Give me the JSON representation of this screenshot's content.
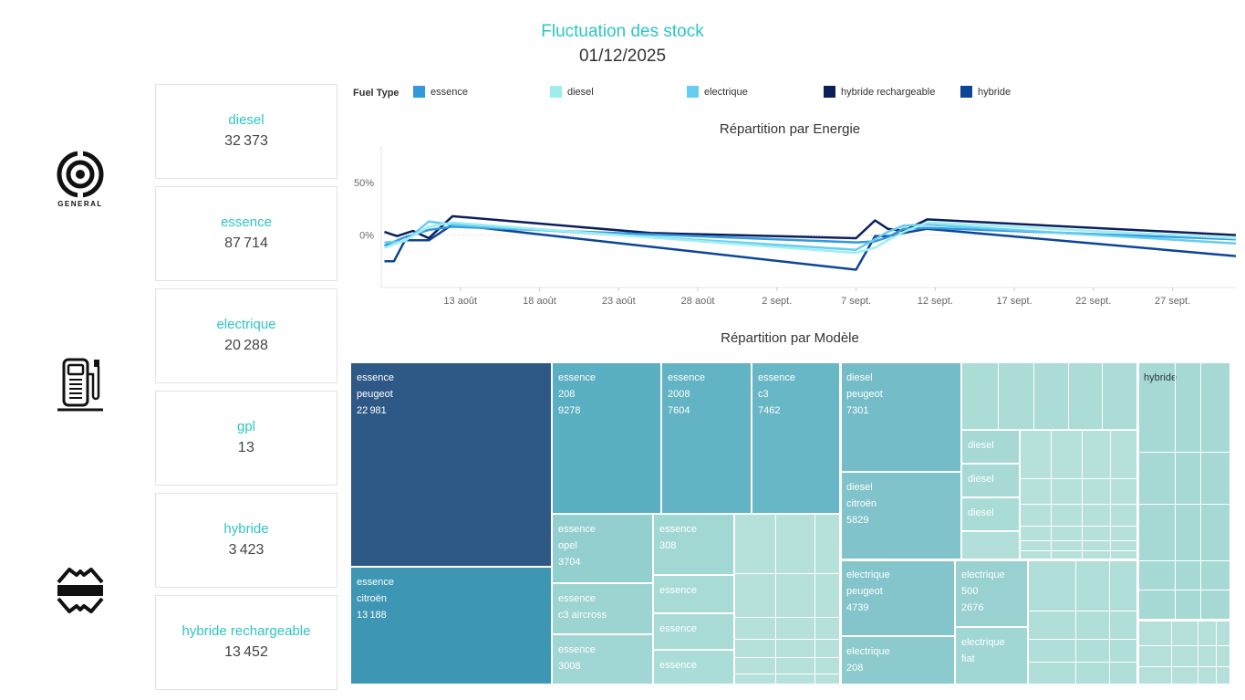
{
  "header": {
    "title": "Fluctuation des stock",
    "date": "01/12/2025"
  },
  "logos": {
    "general_text": "GENERAL"
  },
  "cards": [
    {
      "label": "diesel",
      "value": "32 373"
    },
    {
      "label": "essence",
      "value": "87 714"
    },
    {
      "label": "electrique",
      "value": "20 288"
    },
    {
      "label": "gpl",
      "value": "13"
    },
    {
      "label": "hybride",
      "value": "3 423"
    },
    {
      "label": "hybride rechargeable",
      "value": "13 452"
    }
  ],
  "legend": {
    "title": "Fuel Type",
    "items": [
      {
        "label": "essence",
        "color": "#3399dd"
      },
      {
        "label": "diesel",
        "color": "#9eeeee"
      },
      {
        "label": "electrique",
        "color": "#66ccf0"
      },
      {
        "label": "hybride rechargeable",
        "color": "#0b1f5c"
      },
      {
        "label": "hybride",
        "color": "#0d4596"
      }
    ]
  },
  "chart_data": [
    {
      "type": "line",
      "title": "Répartition par Energie",
      "ylabel": "",
      "ylim": [
        -50,
        85
      ],
      "yticks": [
        {
          "v": 0,
          "label": "0%"
        },
        {
          "v": 50,
          "label": "50%"
        }
      ],
      "xlim": [
        8,
        62
      ],
      "x_ticks": [
        {
          "x": 13,
          "label": "13 août"
        },
        {
          "x": 18,
          "label": "18 août"
        },
        {
          "x": 23,
          "label": "23 août"
        },
        {
          "x": 28,
          "label": "28 août"
        },
        {
          "x": 33,
          "label": "2 sept."
        },
        {
          "x": 38,
          "label": "7 sept."
        },
        {
          "x": 43,
          "label": "12 sept."
        },
        {
          "x": 48,
          "label": "17 sept."
        },
        {
          "x": 53,
          "label": "22 sept."
        },
        {
          "x": 58,
          "label": "27 sept."
        }
      ],
      "series": [
        {
          "name": "hybride rechargeable",
          "color": "#0b1f5c",
          "points": [
            [
              8.2,
              3
            ],
            [
              9,
              -1
            ],
            [
              10,
              4
            ],
            [
              11,
              -3
            ],
            [
              12.5,
              18
            ],
            [
              25,
              2
            ],
            [
              38,
              -3
            ],
            [
              39.2,
              14
            ],
            [
              40,
              6
            ],
            [
              41,
              4
            ],
            [
              42.5,
              15
            ],
            [
              62,
              0
            ]
          ]
        },
        {
          "name": "hybride",
          "color": "#0d4596",
          "points": [
            [
              8.2,
              -25
            ],
            [
              8.8,
              -25
            ],
            [
              9.5,
              -5
            ],
            [
              11,
              -5
            ],
            [
              12.5,
              10
            ],
            [
              38,
              -33
            ],
            [
              39.2,
              -1
            ],
            [
              40,
              -1
            ],
            [
              41,
              2
            ],
            [
              42.5,
              6
            ],
            [
              62,
              -20
            ]
          ]
        },
        {
          "name": "essence",
          "color": "#3399dd",
          "points": [
            [
              8.2,
              -10
            ],
            [
              9.5,
              -2
            ],
            [
              11,
              5
            ],
            [
              12.5,
              8
            ],
            [
              38,
              -7
            ],
            [
              39.2,
              -6
            ],
            [
              40,
              -2
            ],
            [
              41,
              6
            ],
            [
              42.5,
              7
            ],
            [
              62,
              -4
            ]
          ]
        },
        {
          "name": "electrique",
          "color": "#66ccf0",
          "points": [
            [
              8.2,
              -7
            ],
            [
              9.5,
              -6
            ],
            [
              11,
              13
            ],
            [
              12.5,
              10
            ],
            [
              38,
              -14
            ],
            [
              39.2,
              -4
            ],
            [
              40,
              3
            ],
            [
              41,
              9
            ],
            [
              42.5,
              10
            ],
            [
              62,
              -8
            ]
          ]
        },
        {
          "name": "diesel",
          "color": "#9eeeee",
          "points": [
            [
              8.2,
              -12
            ],
            [
              9.5,
              -5
            ],
            [
              11,
              8
            ],
            [
              12.5,
              12
            ],
            [
              38,
              -17
            ],
            [
              39.2,
              -12
            ],
            [
              40,
              -5
            ],
            [
              41,
              3
            ],
            [
              42.5,
              12
            ],
            [
              62,
              -3
            ]
          ]
        }
      ]
    },
    {
      "type": "treemap",
      "title": "Répartition par Modèle",
      "cells": [
        {
          "r": [
            384,
            397,
            605,
            621
          ],
          "fill": "#2e5986",
          "label": "essence\npeugeot\n22 981",
          "fg": "light"
        },
        {
          "r": [
            384,
            621,
            605,
            750
          ],
          "fill": "#3d96b4",
          "label": "essence\ncitroën\n13 188",
          "fg": "light"
        },
        {
          "r": [
            605,
            397,
            725,
            563
          ],
          "fill": "#5aafc2",
          "label": "essence\n208\n9278",
          "fg": "light"
        },
        {
          "r": [
            725,
            397,
            824,
            563
          ],
          "fill": "#62b3c4",
          "label": "essence\n2008\n7604",
          "fg": "light"
        },
        {
          "r": [
            824,
            397,
            921,
            563
          ],
          "fill": "#68b7c6",
          "label": "essence\nc3\n7462",
          "fg": "light"
        },
        {
          "r": [
            605,
            563,
            716,
            639
          ],
          "fill": "#94cfcf",
          "label": "essence\nopel\n3704",
          "fg": "light"
        },
        {
          "r": [
            605,
            639,
            716,
            695
          ],
          "fill": "#9bd4d1",
          "label": "essence\nc3 aircross",
          "fg": "light"
        },
        {
          "r": [
            605,
            695,
            716,
            750
          ],
          "fill": "#a0d6d3",
          "label": "essence\n3008",
          "fg": "light"
        },
        {
          "r": [
            716,
            563,
            805,
            630
          ],
          "fill": "#a2d8d4",
          "label": "essence\n308",
          "fg": "light"
        },
        {
          "r": [
            716,
            630,
            805,
            672
          ],
          "fill": "#a8dbd6",
          "label": "essence",
          "fg": "light"
        },
        {
          "r": [
            716,
            672,
            805,
            712
          ],
          "fill": "#a8dbd6",
          "label": "essence",
          "fg": "light"
        },
        {
          "r": [
            716,
            712,
            805,
            750
          ],
          "fill": "#aaddd7",
          "label": "essence",
          "fg": "light"
        },
        {
          "r": [
            805,
            563,
            921,
            750
          ],
          "fill": "#b6e1da",
          "label": "",
          "fg": "dark"
        },
        {
          "r": [
            921,
            397,
            1054,
            517
          ],
          "fill": "#74bcc7",
          "label": "diesel\npeugeot\n7301",
          "fg": "light"
        },
        {
          "r": [
            921,
            517,
            1054,
            613
          ],
          "fill": "#80c3ca",
          "label": "diesel\ncitroën\n5829",
          "fg": "light"
        },
        {
          "r": [
            1054,
            397,
            1247,
            471
          ],
          "fill": "#acdcd6",
          "label": "",
          "fg": "dark"
        },
        {
          "r": [
            1054,
            471,
            1118,
            508
          ],
          "fill": "#a6d9d4",
          "label": "diesel",
          "fg": "light"
        },
        {
          "r": [
            1054,
            508,
            1118,
            545
          ],
          "fill": "#a8dad5",
          "label": "diesel",
          "fg": "light"
        },
        {
          "r": [
            1054,
            545,
            1118,
            582
          ],
          "fill": "#aadcd6",
          "label": "diesel",
          "fg": "light"
        },
        {
          "r": [
            1054,
            582,
            1118,
            613
          ],
          "fill": "#b2dfd9",
          "label": "",
          "fg": "dark"
        },
        {
          "r": [
            1118,
            471,
            1247,
            613
          ],
          "fill": "#b6e1da",
          "label": "",
          "fg": "dark"
        },
        {
          "r": [
            921,
            613,
            1047,
            697
          ],
          "fill": "#84c5cb",
          "label": "electrique\npeugeot\n4739",
          "fg": "light"
        },
        {
          "r": [
            921,
            697,
            1047,
            750
          ],
          "fill": "#8ccacd",
          "label": "electrique\n208",
          "fg": "light"
        },
        {
          "r": [
            1047,
            613,
            1127,
            687
          ],
          "fill": "#98d1d0",
          "label": "electrique\n500\n2676",
          "fg": "light"
        },
        {
          "r": [
            1047,
            687,
            1127,
            750
          ],
          "fill": "#a0d6d3",
          "label": "electrique\nfiat",
          "fg": "light"
        },
        {
          "r": [
            1127,
            613,
            1247,
            750
          ],
          "fill": "#b0ded8",
          "label": "",
          "fg": "dark"
        },
        {
          "r": [
            1247,
            397,
            1349,
            679
          ],
          "fill": "#a6d9d4",
          "label": "hybride",
          "fg": "dark"
        },
        {
          "r": [
            1247,
            679,
            1349,
            750
          ],
          "fill": "#b4e0d9",
          "label": "",
          "fg": "dark"
        }
      ]
    }
  ]
}
